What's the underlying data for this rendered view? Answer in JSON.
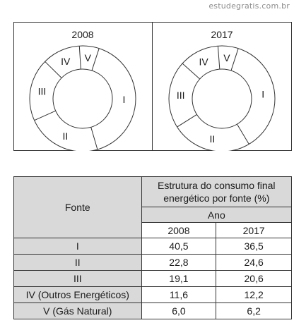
{
  "watermark": "estudegratis.com.br",
  "chart_data": [
    {
      "type": "pie",
      "title": "2008",
      "slices": [
        {
          "label": "I",
          "value": 40.5
        },
        {
          "label": "II",
          "value": 22.8
        },
        {
          "label": "III",
          "value": 19.1
        },
        {
          "label": "IV",
          "value": 11.6
        },
        {
          "label": "V",
          "value": 6.0
        }
      ]
    },
    {
      "type": "pie",
      "title": "2017",
      "slices": [
        {
          "label": "I",
          "value": 36.5
        },
        {
          "label": "II",
          "value": 24.6
        },
        {
          "label": "III",
          "value": 20.6
        },
        {
          "label": "IV",
          "value": 12.2
        },
        {
          "label": "V",
          "value": 6.2
        }
      ]
    }
  ],
  "table": {
    "fonte_header": "Fonte",
    "structure_header_line1": "Estrutura do consumo final",
    "structure_header_line2": "energético por fonte (%)",
    "ano_header": "Ano",
    "year_2008": "2008",
    "year_2017": "2017",
    "rows": [
      {
        "fonte": "I",
        "v2008": "40,5",
        "v2017": "36,5"
      },
      {
        "fonte": "II",
        "v2008": "22,8",
        "v2017": "24,6"
      },
      {
        "fonte": "III",
        "v2008": "19,1",
        "v2017": "20,6"
      },
      {
        "fonte": "IV (Outros Energéticos)",
        "v2008": "11,6",
        "v2017": "12,2"
      },
      {
        "fonte": "V (Gás Natural)",
        "v2008": "6,0",
        "v2017": "6,2"
      }
    ]
  }
}
